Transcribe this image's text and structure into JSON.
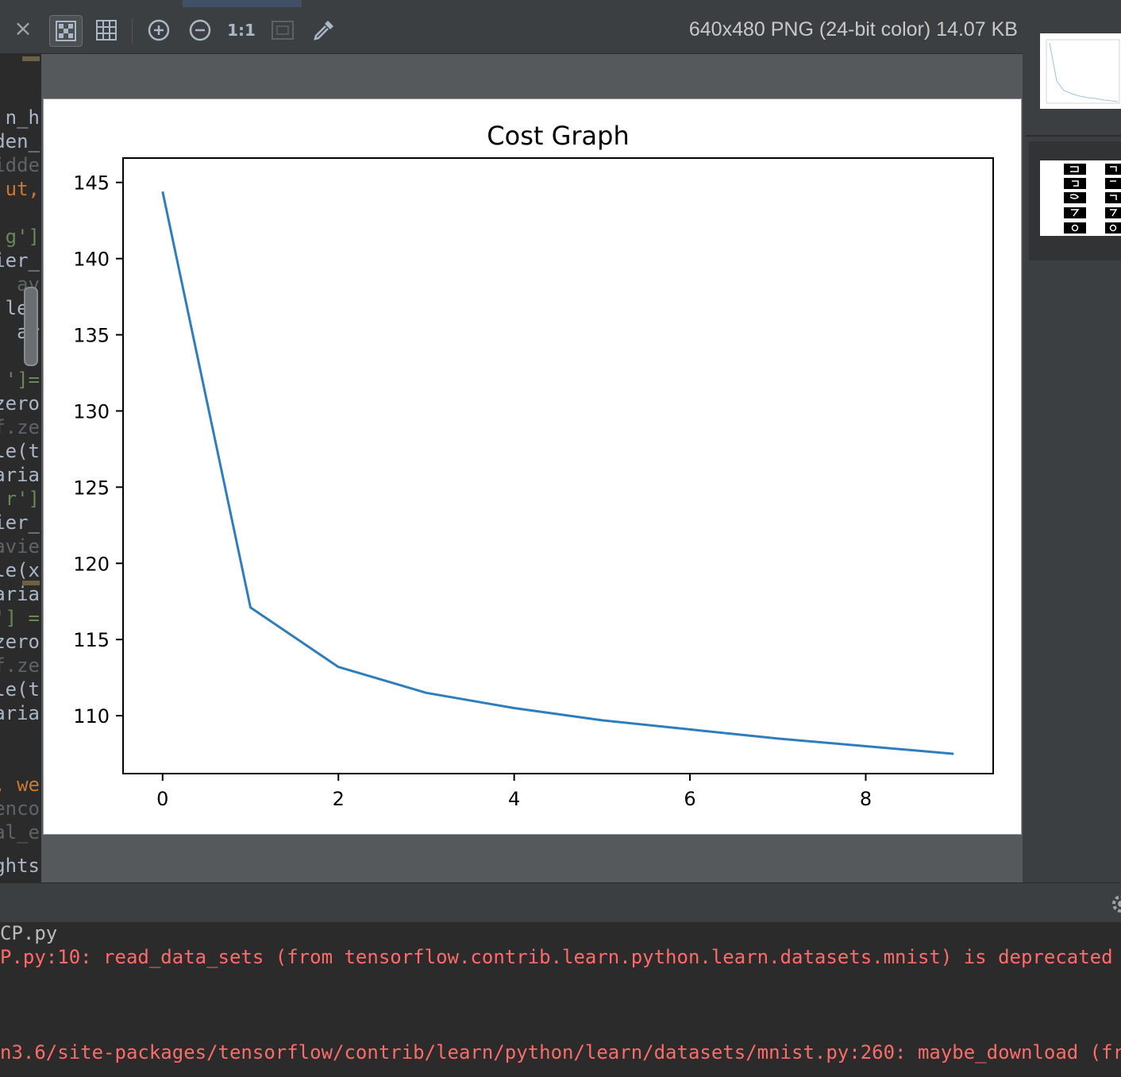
{
  "toolbar": {
    "close_glyph": "×",
    "one_to_one_label": "1:1",
    "image_info": "640x480 PNG (24-bit color) 14.07 KB"
  },
  "code_fragments": [
    "n_h",
    "den_",
    "idde",
    "ut,",
    "g']",
    "ier_",
    "av",
    "le(",
    "ar",
    "']=",
    "zero",
    "f.ze",
    "le(t",
    "aria",
    "r']",
    "ier_",
    "avie",
    "le(x",
    "aria",
    "'] =",
    "zero",
    "f.ze",
    "le(t",
    "aria",
    ", we",
    "enco",
    "al_e",
    "eights"
  ],
  "chart_data": {
    "type": "line",
    "title": "Cost Graph",
    "xlabel": "",
    "ylabel": "",
    "x": [
      0,
      1,
      2,
      3,
      4,
      5,
      6,
      7,
      8,
      9
    ],
    "series": [
      {
        "values": [
          144.4,
          117.1,
          113.2,
          111.5,
          110.5,
          109.7,
          109.1,
          108.5,
          108.0,
          107.5
        ],
        "color": "#2f7ebc"
      }
    ],
    "xlim": [
      -0.45,
      9.45
    ],
    "ylim": [
      106.2,
      146.6
    ],
    "xticks": [
      0,
      2,
      4,
      6,
      8
    ],
    "yticks": [
      110,
      115,
      120,
      125,
      130,
      135,
      140,
      145
    ],
    "grid": false
  },
  "console": {
    "line1": "CP.py",
    "line2": "P.py:10: read_data_sets (from tensorflow.contrib.learn.python.learn.datasets.mnist) is deprecated and",
    "line3": "n3.6/site-packages/tensorflow/contrib/learn/python/learn/datasets/mnist.py:260: maybe_download (from t"
  }
}
